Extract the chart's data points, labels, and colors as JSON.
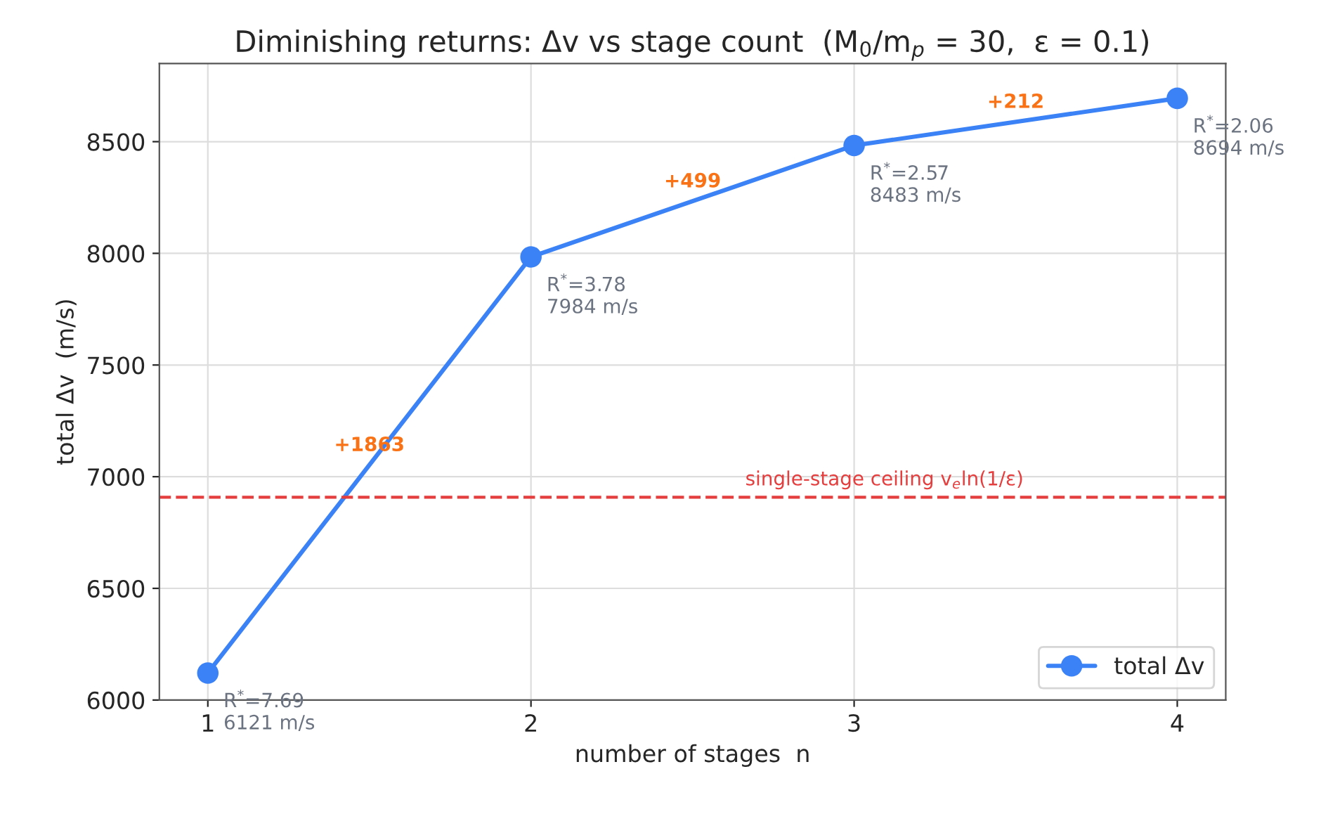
{
  "chart_data": {
    "type": "line",
    "title": "Diminishing returns: Δv vs stage count  (M$_{0}$/m$_{p}$ = 30,  ε = 0.1)",
    "xlabel": "number of stages  n",
    "ylabel": "total Δv  (m/s)",
    "x": [
      1,
      2,
      3,
      4
    ],
    "series": [
      {
        "name": "total Δv",
        "color": "#3b82f6",
        "values": [
          6121,
          7984,
          8483,
          8694
        ]
      }
    ],
    "xlim": [
      0.85,
      4.15
    ],
    "xticks": [
      1,
      2,
      3,
      4
    ],
    "ylim": [
      6000,
      8850
    ],
    "yticks": [
      6000,
      6500,
      7000,
      7500,
      8000,
      8500
    ],
    "ref_lines": [
      {
        "axis": "y",
        "value": 6908,
        "label": "single-stage ceiling v$_{e}$ln(1/ε)",
        "color": "#e53e3e",
        "line_style": "dashed"
      }
    ],
    "annotations": [
      {
        "text": "R$^{*}$=7.69\n6121 m/s",
        "x": 1,
        "y": 6121
      },
      {
        "text": "R$^{*}$=3.78\n7984 m/s",
        "x": 2,
        "y": 7984
      },
      {
        "text": "R$^{*}$=2.57\n8483 m/s",
        "x": 3,
        "y": 8483
      },
      {
        "text": "R$^{*}$=2.06\n8694 m/s",
        "x": 4,
        "y": 8694
      },
      {
        "text": "+1863",
        "x": 1.5,
        "y": 7053
      },
      {
        "text": "+499",
        "x": 2.5,
        "y": 8234
      },
      {
        "text": "+212",
        "x": 3.5,
        "y": 8589
      }
    ],
    "grid": true,
    "legend": "bottom right",
    "marker": "circle",
    "line_style": "solid"
  }
}
